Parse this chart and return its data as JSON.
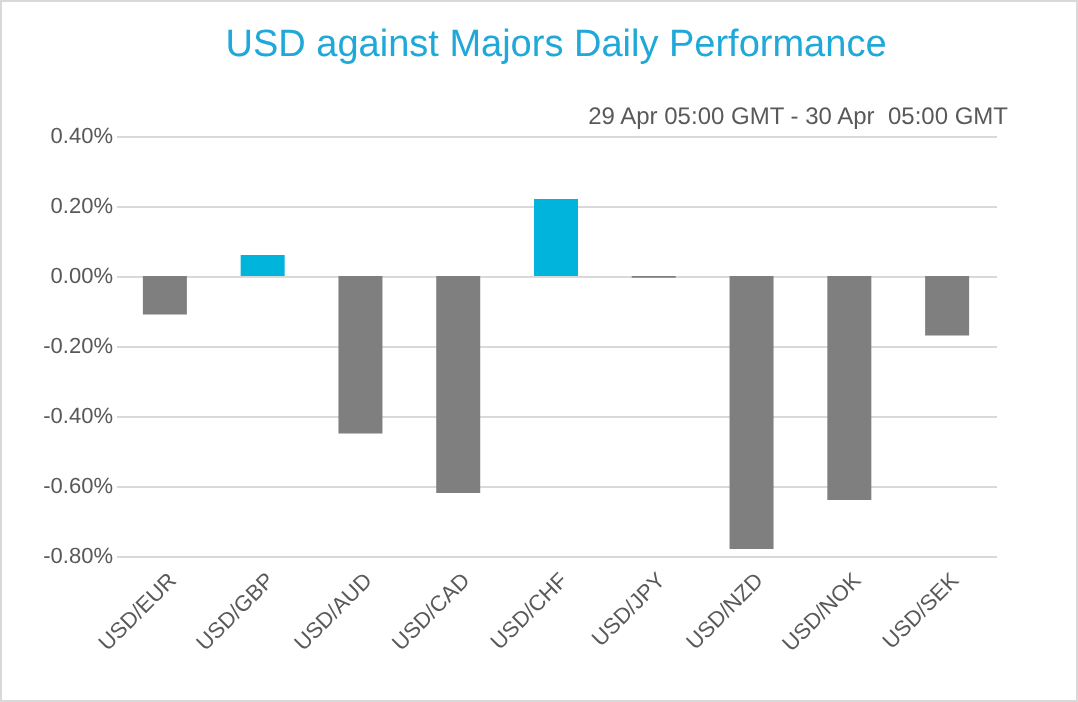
{
  "chart_data": {
    "type": "bar",
    "title": "USD against Majors Daily Performance",
    "subtitle": "29 Apr 05:00 GMT - 30 Apr  05:00 GMT",
    "categories": [
      "USD/EUR",
      "USD/GBP",
      "USD/AUD",
      "USD/CAD",
      "USD/CHF",
      "USD/JPY",
      "USD/NZD",
      "USD/NOK",
      "USD/SEK"
    ],
    "values": [
      -0.11,
      0.06,
      -0.45,
      -0.62,
      0.22,
      -0.005,
      -0.78,
      -0.64,
      -0.17
    ],
    "colors": [
      "#7f7f7f",
      "#00b4dc",
      "#7f7f7f",
      "#7f7f7f",
      "#00b4dc",
      "#7f7f7f",
      "#7f7f7f",
      "#7f7f7f",
      "#7f7f7f"
    ],
    "ylim": [
      -0.8,
      0.4
    ],
    "yticks": [
      {
        "value": -0.8,
        "label": "-0.80%"
      },
      {
        "value": -0.6,
        "label": "-0.60%"
      },
      {
        "value": -0.4,
        "label": "-0.40%"
      },
      {
        "value": -0.2,
        "label": "-0.20%"
      },
      {
        "value": 0,
        "label": "0.00%"
      },
      {
        "value": 0.2,
        "label": "0.20%"
      },
      {
        "value": 0.4,
        "label": "0.40%"
      }
    ],
    "grid": "y"
  }
}
